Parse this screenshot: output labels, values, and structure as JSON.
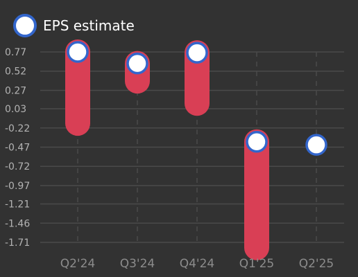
{
  "colors": {
    "background": "#323232",
    "grid": "#4a4a4a",
    "bar": "#d93f55",
    "marker_fill": "#ffffff",
    "marker_stroke": "#3366cc",
    "y_tick_text": "#b3b3b3",
    "x_tick_text": "#8c8c8c",
    "legend_text": "#ffffff"
  },
  "legend": {
    "label": "EPS estimate",
    "position": "top-left"
  },
  "chart_data": {
    "type": "bar",
    "subtype": "floating-range with estimate markers",
    "categories": [
      "Q2'24",
      "Q3'24",
      "Q4'24",
      "Q1'25",
      "Q2'25"
    ],
    "series": [
      {
        "name": "EPS estimate",
        "values": [
          0.77,
          0.62,
          0.76,
          -0.4,
          -0.44
        ]
      }
    ],
    "range_low": [
      -0.16,
      0.39,
      0.1,
      -1.78,
      null
    ],
    "range_high": [
      0.77,
      0.62,
      0.76,
      -0.4,
      null
    ],
    "y_ticks": [
      0.77,
      0.52,
      0.27,
      0.03,
      -0.22,
      -0.47,
      -0.72,
      -0.97,
      -1.21,
      -1.46,
      -1.71
    ],
    "y_tick_labels": [
      "0.77",
      "0.52",
      "0.27",
      "0.03",
      "-0.22",
      "-0.47",
      "-0.72",
      "-0.97",
      "-1.21",
      "-1.46",
      "-1.71"
    ],
    "ylim": [
      -1.71,
      0.77
    ],
    "title": "",
    "xlabel": "",
    "ylabel": "",
    "grid": true
  }
}
